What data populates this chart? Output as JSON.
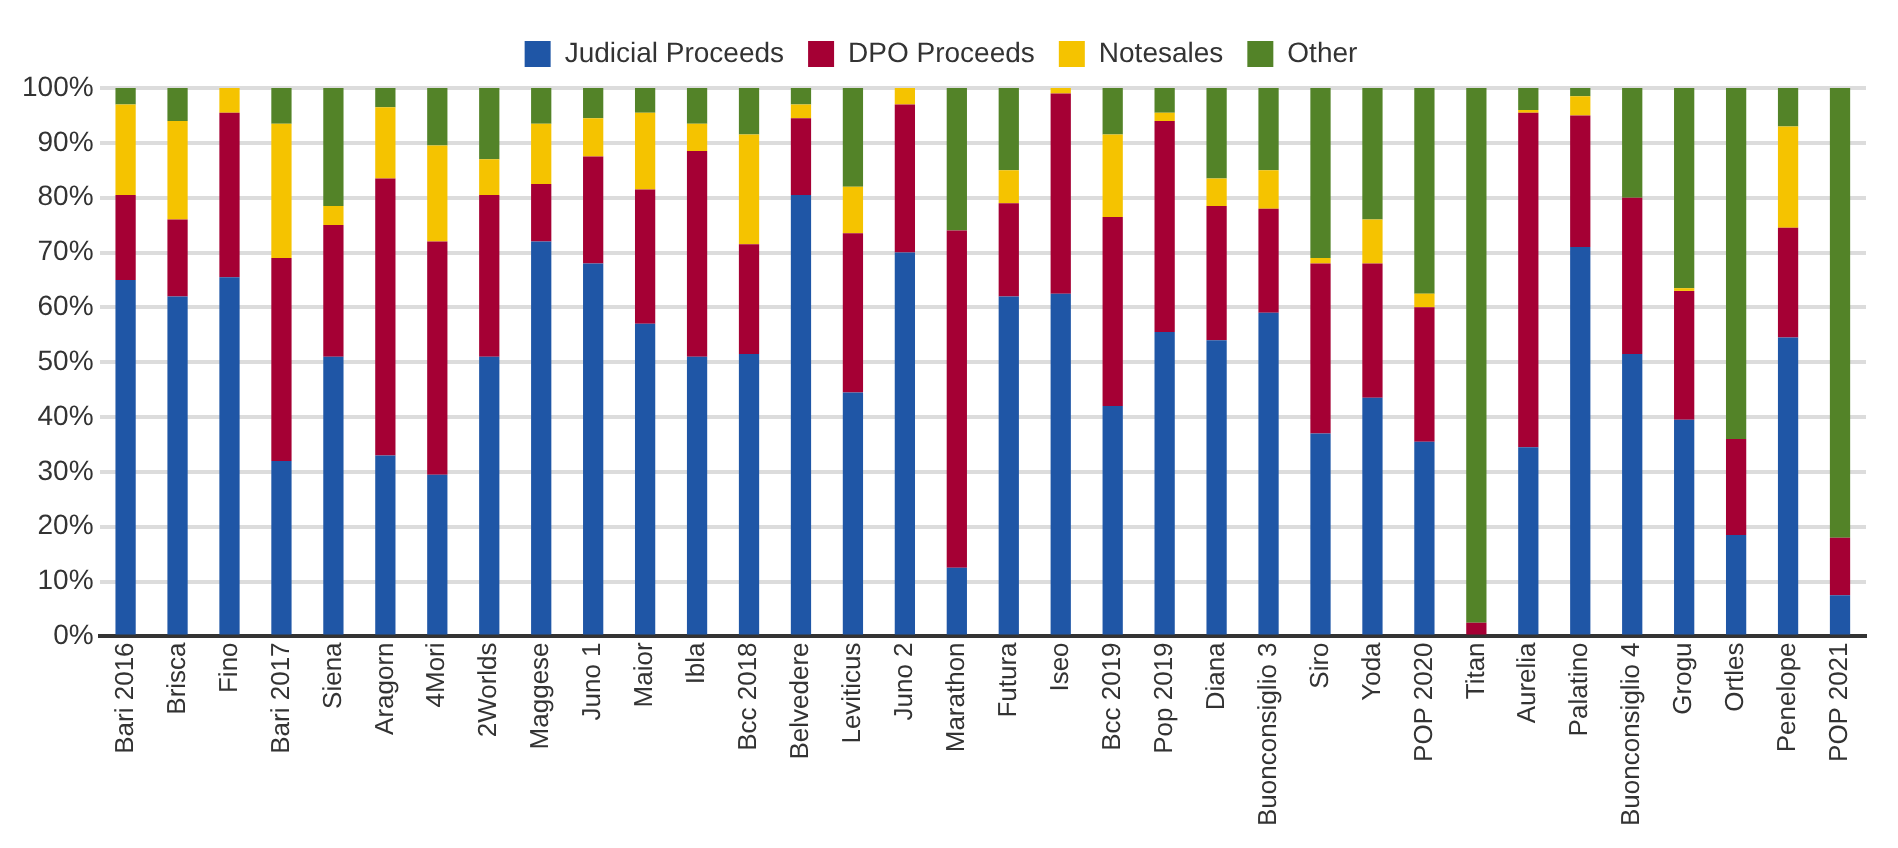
{
  "chart_data": {
    "type": "bar",
    "stacked": true,
    "legend": "top",
    "grid": "y",
    "categories": [
      "Bari 2016",
      "Brisca",
      "Fino",
      "Bari 2017",
      "Siena",
      "Aragorn",
      "4Mori",
      "2Worlds",
      "Maggese",
      "Juno 1",
      "Maior",
      "Ibla",
      "Bcc 2018",
      "Belvedere",
      "Leviticus",
      "Juno 2",
      "Marathon",
      "Futura",
      "Iseo",
      "Bcc 2019",
      "Pop 2019",
      "Diana",
      "Buonconsiglio 3",
      "Siro",
      "Yoda",
      "POP 2020",
      "Titan",
      "Aurelia",
      "Palatino",
      "Buonconsiglio 4",
      "Grogu",
      "Ortles",
      "Penelope",
      "POP 2021"
    ],
    "ylim": [
      0,
      100
    ],
    "yticks": [
      {
        "value": 0,
        "label": "0%"
      },
      {
        "value": 10,
        "label": "10%"
      },
      {
        "value": 20,
        "label": "20%"
      },
      {
        "value": 30,
        "label": "30%"
      },
      {
        "value": 40,
        "label": "40%"
      },
      {
        "value": 50,
        "label": "50%"
      },
      {
        "value": 60,
        "label": "60%"
      },
      {
        "value": 70,
        "label": "70%"
      },
      {
        "value": 80,
        "label": "80%"
      },
      {
        "value": 90,
        "label": "90%"
      },
      {
        "value": 100,
        "label": "100%"
      }
    ],
    "series": [
      {
        "name": "Judicial Proceeds",
        "color": "#1f56a6",
        "values": [
          65,
          62,
          65.5,
          32,
          51,
          33,
          29.5,
          51,
          72,
          68,
          57,
          51,
          51.5,
          80.5,
          44.5,
          70,
          12.5,
          62,
          62.5,
          42,
          55.5,
          54,
          59,
          37,
          43.5,
          35.5,
          null,
          34.5,
          71,
          51.5,
          39.5,
          18.5,
          54.5,
          7.5
        ]
      },
      {
        "name": "DPO Proceeds",
        "color": "#a50034",
        "values": [
          15.5,
          14,
          30,
          37,
          24,
          50.5,
          42.5,
          29.5,
          10.5,
          19.5,
          24.5,
          37.5,
          20,
          14,
          29,
          27,
          61.5,
          17,
          36.5,
          34.5,
          38.5,
          24.5,
          19,
          31,
          24.5,
          24.5,
          2.5,
          61,
          24,
          28.5,
          23.5,
          17.5,
          20,
          10.5
        ]
      },
      {
        "name": "Notesales",
        "color": "#f5c300",
        "values": [
          16.5,
          18,
          4.5,
          24.5,
          3.5,
          13,
          17.5,
          6.5,
          11,
          7,
          14,
          5,
          20,
          2.5,
          8.5,
          3,
          0,
          6,
          1,
          15,
          1.5,
          5,
          7,
          1,
          8,
          2.5,
          0,
          0.5,
          3.5,
          0,
          0.5,
          0,
          18.5,
          0
        ]
      },
      {
        "name": "Other",
        "color": "#538328",
        "values": [
          3,
          6,
          0,
          6.5,
          21.5,
          3.5,
          10.5,
          13,
          6.5,
          5.5,
          4.5,
          6.5,
          8.5,
          3,
          18,
          0,
          26,
          15,
          0,
          8.5,
          4.5,
          16.5,
          15,
          31,
          24,
          37.5,
          97.5,
          4,
          1.5,
          20,
          36.5,
          64,
          7,
          82
        ]
      }
    ]
  }
}
